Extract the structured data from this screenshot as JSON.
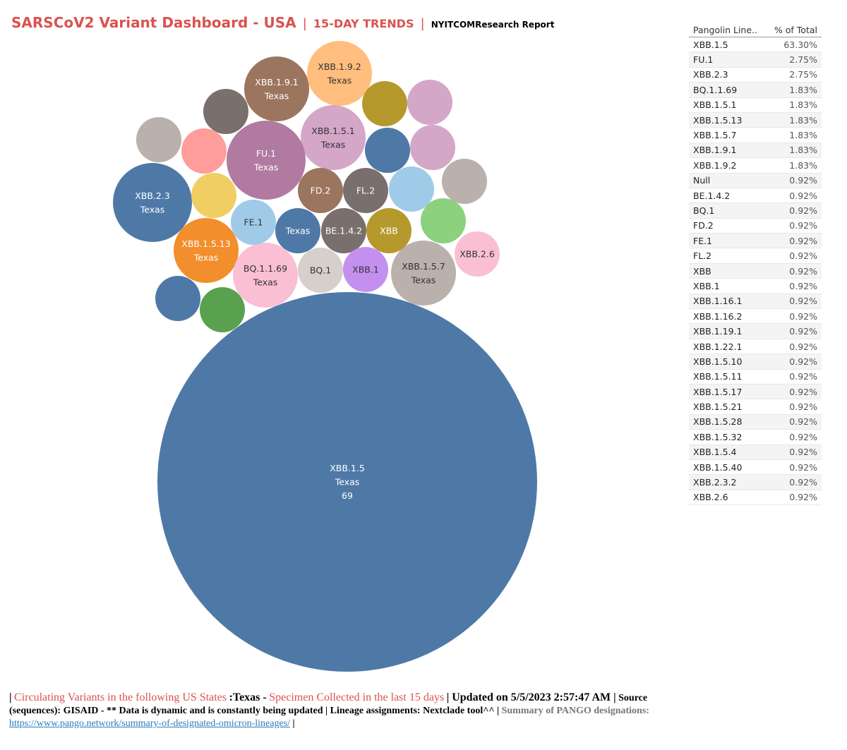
{
  "header": {
    "title": "SARSCoV2 Variant Dashboard - USA",
    "separator": "|",
    "subtitle": "15-DAY TRENDS",
    "report": "NYITCOMResearch Report"
  },
  "colors": {
    "title": "#d9534f",
    "main_bubble": "#4e79a7"
  },
  "chart_data": {
    "type": "bubble",
    "state": "Texas",
    "bubbles": [
      {
        "lineage": "XBB.1.5",
        "state_label": "Texas",
        "count": 69,
        "color": "#4e79a7",
        "label": true,
        "show_count": true
      },
      {
        "lineage": "XBB.1.9.1",
        "state_label": "Texas",
        "count": 2,
        "color": "#9c755f",
        "label": true
      },
      {
        "lineage": "XBB.1.9.2",
        "state_label": "Texas",
        "count": 2,
        "color": "#ffbe7d",
        "label": true
      },
      {
        "lineage": "XBB.1.5.1",
        "state_label": "Texas",
        "count": 2,
        "color": "#d4a6c8",
        "label": true
      },
      {
        "lineage": "FU.1",
        "state_label": "Texas",
        "count": 3,
        "color": "#b07aa1",
        "label": true
      },
      {
        "lineage": "XBB.2.3",
        "state_label": "Texas",
        "count": 3,
        "color": "#4e79a7",
        "label": true
      },
      {
        "lineage": "XBB.1.5.13",
        "state_label": "Texas",
        "count": 2,
        "color": "#f28e2b",
        "label": true
      },
      {
        "lineage": "BQ.1.1.69",
        "state_label": "Texas",
        "count": 2,
        "color": "#fabfd2",
        "label": true
      },
      {
        "lineage": "XBB.1.5.7",
        "state_label": "Texas",
        "count": 2,
        "color": "#bab0ac",
        "label": true
      },
      {
        "lineage": "FD.2",
        "state_label": "",
        "count": 1,
        "color": "#9c755f",
        "label": true
      },
      {
        "lineage": "FL.2",
        "state_label": "",
        "count": 1,
        "color": "#79706e",
        "label": true
      },
      {
        "lineage": "FE.1",
        "state_label": "",
        "count": 1,
        "color": "#a0cbe8",
        "label": true
      },
      {
        "lineage": "",
        "state_label": "Texas",
        "count": 1,
        "color": "#4e79a7",
        "label": true
      },
      {
        "lineage": "BE.1.4.2",
        "state_label": "",
        "count": 1,
        "color": "#79706e",
        "label": true
      },
      {
        "lineage": "XBB",
        "state_label": "",
        "count": 1,
        "color": "#b6992d",
        "label": true
      },
      {
        "lineage": "XBB.2.6",
        "state_label": "",
        "count": 1,
        "color": "#fabfd2",
        "label": true
      },
      {
        "lineage": "BQ.1",
        "state_label": "",
        "count": 1,
        "color": "#d7cfcb",
        "label": true
      },
      {
        "lineage": "XBB.1",
        "state_label": "",
        "count": 1,
        "color": "#c490f0",
        "label": true
      },
      {
        "lineage": "",
        "state_label": "",
        "count": 1,
        "color": "#79706e",
        "label": false
      },
      {
        "lineage": "",
        "state_label": "",
        "count": 1,
        "color": "#b6992d",
        "label": false
      },
      {
        "lineage": "",
        "state_label": "",
        "count": 1,
        "color": "#d4a6c8",
        "label": false
      },
      {
        "lineage": "",
        "state_label": "",
        "count": 1,
        "color": "#bab0ac",
        "label": false
      },
      {
        "lineage": "",
        "state_label": "",
        "count": 1,
        "color": "#ff9d9a",
        "label": false
      },
      {
        "lineage": "",
        "state_label": "",
        "count": 1,
        "color": "#4e79a7",
        "label": false
      },
      {
        "lineage": "",
        "state_label": "",
        "count": 1,
        "color": "#d4a6c8",
        "label": false
      },
      {
        "lineage": "",
        "state_label": "",
        "count": 1,
        "color": "#f1ce63",
        "label": false
      },
      {
        "lineage": "",
        "state_label": "",
        "count": 1,
        "color": "#a0cbe8",
        "label": false
      },
      {
        "lineage": "",
        "state_label": "",
        "count": 1,
        "color": "#bab0ac",
        "label": false
      },
      {
        "lineage": "",
        "state_label": "",
        "count": 1,
        "color": "#8cd17d",
        "label": false
      },
      {
        "lineage": "",
        "state_label": "",
        "count": 1,
        "color": "#4e79a7",
        "label": false
      },
      {
        "lineage": "",
        "state_label": "",
        "count": 1,
        "color": "#59a14f",
        "label": false
      }
    ]
  },
  "table": {
    "headers": [
      "Pangolin Line..",
      "% of Total"
    ],
    "rows": [
      [
        "XBB.1.5",
        "63.30%"
      ],
      [
        "FU.1",
        "2.75%"
      ],
      [
        "XBB.2.3",
        "2.75%"
      ],
      [
        "BQ.1.1.69",
        "1.83%"
      ],
      [
        "XBB.1.5.1",
        "1.83%"
      ],
      [
        "XBB.1.5.13",
        "1.83%"
      ],
      [
        "XBB.1.5.7",
        "1.83%"
      ],
      [
        "XBB.1.9.1",
        "1.83%"
      ],
      [
        "XBB.1.9.2",
        "1.83%"
      ],
      [
        "Null",
        "0.92%"
      ],
      [
        "BE.1.4.2",
        "0.92%"
      ],
      [
        "BQ.1",
        "0.92%"
      ],
      [
        "FD.2",
        "0.92%"
      ],
      [
        "FE.1",
        "0.92%"
      ],
      [
        "FL.2",
        "0.92%"
      ],
      [
        "XBB",
        "0.92%"
      ],
      [
        "XBB.1",
        "0.92%"
      ],
      [
        "XBB.1.16.1",
        "0.92%"
      ],
      [
        "XBB.1.16.2",
        "0.92%"
      ],
      [
        "XBB.1.19.1",
        "0.92%"
      ],
      [
        "XBB.1.22.1",
        "0.92%"
      ],
      [
        "XBB.1.5.10",
        "0.92%"
      ],
      [
        "XBB.1.5.11",
        "0.92%"
      ],
      [
        "XBB.1.5.17",
        "0.92%"
      ],
      [
        "XBB.1.5.21",
        "0.92%"
      ],
      [
        "XBB.1.5.28",
        "0.92%"
      ],
      [
        "XBB.1.5.32",
        "0.92%"
      ],
      [
        "XBB.1.5.4",
        "0.92%"
      ],
      [
        "XBB.1.5.40",
        "0.92%"
      ],
      [
        "XBB.2.3.2",
        "0.92%"
      ],
      [
        "XBB.2.6",
        "0.92%"
      ]
    ]
  },
  "footer": {
    "bar1": "|",
    "circulating": "Circulating Variants in the following US States",
    "states": ":Texas -",
    "specimen": "Specimen Collected in the last 15 days",
    "updated": "| Updated on 5/5/2023 2:57:47 AM |",
    "source": "Source (sequences): GISAID - ** Data is dynamic and is constantly being updated | Lineage assignments: Nextclade tool^^ |",
    "pango_label": "Summary of PANGO designations:",
    "pango_url": "https://www.pango.network/summary-of-designated-omicron-lineages/",
    "bar_end": "|"
  }
}
